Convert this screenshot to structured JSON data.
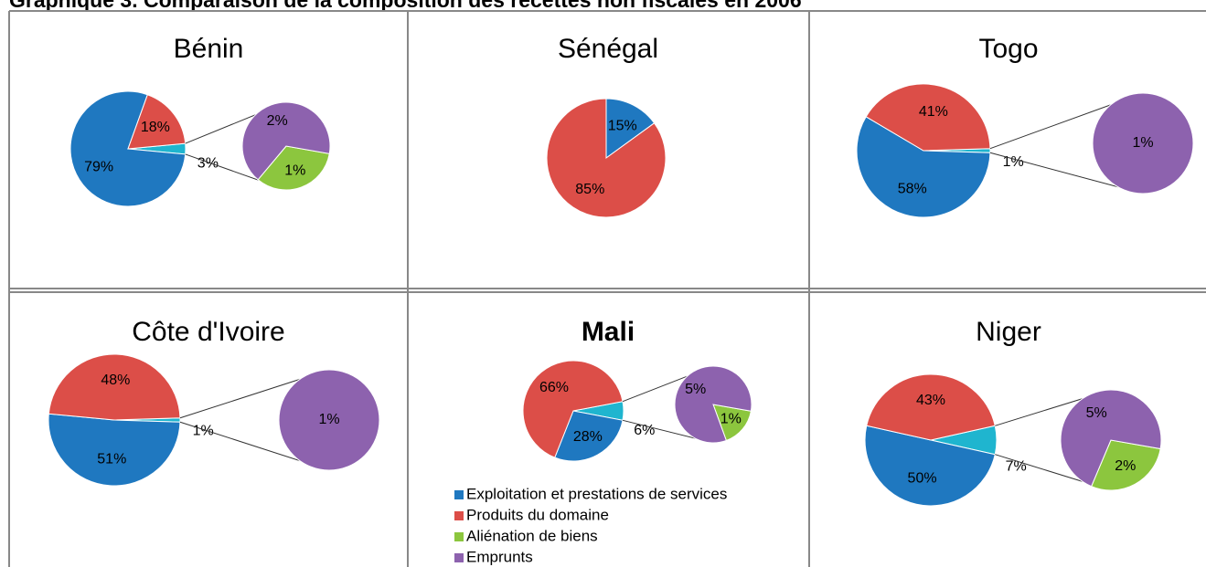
{
  "title": "Graphique 3. Comparaison de la composition des recettes non fiscales en 2006",
  "legend": {
    "categories": [
      "Exploitation et prestations de services",
      "Produits du domaine",
      "Aliénation de biens",
      "Emprunts"
    ],
    "colors": [
      "#1f78c0",
      "#dc4e48",
      "#8cc63e",
      "#8d62ae"
    ]
  },
  "other_color": "#1fb5cf",
  "chart_data": [
    {
      "type": "pie-of-pie",
      "title": "Bénin",
      "values": [
        79,
        18,
        1,
        2
      ],
      "value_labels": [
        "79%",
        "18%",
        "1%",
        "2%"
      ],
      "other": 3,
      "other_label": "3%"
    },
    {
      "type": "pie",
      "title": "Sénégal",
      "values": [
        15,
        85,
        null,
        null
      ],
      "value_labels": [
        "15%",
        "85%",
        null,
        null
      ]
    },
    {
      "type": "pie-of-pie",
      "title": "Togo",
      "values": [
        58,
        41,
        null,
        1
      ],
      "value_labels": [
        "58%",
        "41%",
        null,
        "1%"
      ],
      "other": 1,
      "other_label": "1%"
    },
    {
      "type": "pie-of-pie",
      "title": "Côte d'Ivoire",
      "values": [
        51,
        48,
        null,
        1
      ],
      "value_labels": [
        "51%",
        "48%",
        null,
        "1%"
      ],
      "other": 1,
      "other_label": "1%"
    },
    {
      "type": "pie-of-pie",
      "title": "Mali",
      "bold": true,
      "values": [
        28,
        66,
        1,
        5
      ],
      "value_labels": [
        "28%",
        "66%",
        "1%",
        "5%"
      ],
      "other": 6,
      "other_label": "6%"
    },
    {
      "type": "pie-of-pie",
      "title": "Niger",
      "values": [
        50,
        43,
        2,
        5
      ],
      "value_labels": [
        "50%",
        "43%",
        "2%",
        "5%"
      ],
      "other": 7,
      "other_label": "7%"
    }
  ]
}
